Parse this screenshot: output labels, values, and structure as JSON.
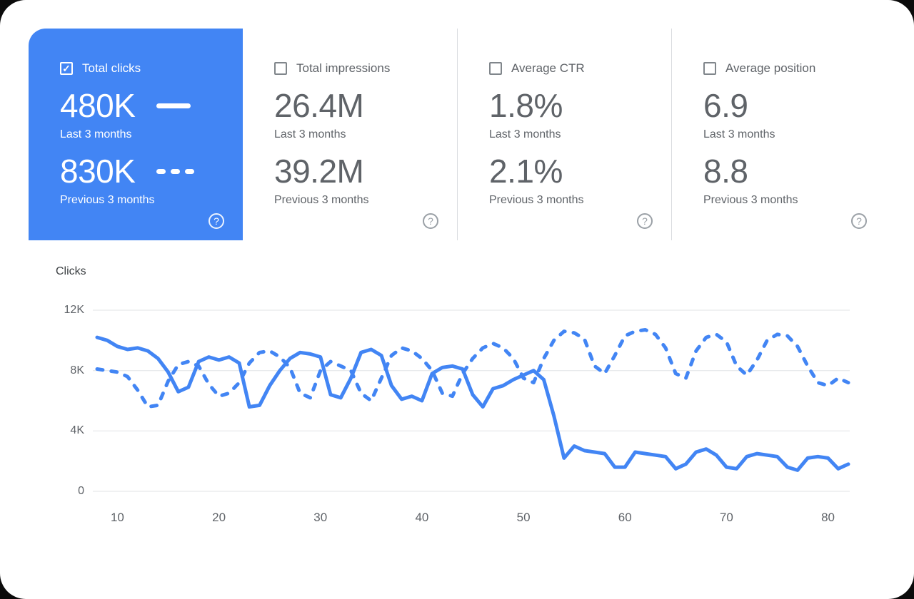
{
  "icons": {
    "check": "✓",
    "help": "?"
  },
  "colors": {
    "accent": "#4285f4",
    "selected_card_bg": "#4285f4",
    "muted_text": "#5f6368",
    "divider": "#dadce0"
  },
  "metrics": {
    "cards": [
      {
        "label": "Total clicks",
        "selected": true,
        "current_value": "480K",
        "current_period": "Last 3 months",
        "previous_value": "830K",
        "previous_period": "Previous 3 months"
      },
      {
        "label": "Total impressions",
        "selected": false,
        "current_value": "26.4M",
        "current_period": "Last 3 months",
        "previous_value": "39.2M",
        "previous_period": "Previous 3 months"
      },
      {
        "label": "Average CTR",
        "selected": false,
        "current_value": "1.8%",
        "current_period": "Last 3 months",
        "previous_value": "2.1%",
        "previous_period": "Previous 3 months"
      },
      {
        "label": "Average position",
        "selected": false,
        "current_value": "6.9",
        "current_period": "Last 3 months",
        "previous_value": "8.8",
        "previous_period": "Previous 3 months"
      }
    ]
  },
  "chart_data": {
    "type": "line",
    "title": "Clicks",
    "xlabel": "",
    "ylabel": "Clicks",
    "grid": true,
    "legend_position": "in-card",
    "line_color": "#4285f4",
    "grid_color": "#e1e3e6",
    "xlim": [
      8,
      82
    ],
    "ylim": [
      0,
      12000
    ],
    "y_ticks": [
      {
        "label": "12K",
        "value": 12000
      },
      {
        "label": "8K",
        "value": 8000
      },
      {
        "label": "4K",
        "value": 4000
      },
      {
        "label": "0",
        "value": 0
      }
    ],
    "x_ticks": [
      10,
      20,
      30,
      40,
      50,
      60,
      70,
      80
    ],
    "x": [
      8,
      9,
      10,
      11,
      12,
      13,
      14,
      15,
      16,
      17,
      18,
      19,
      20,
      21,
      22,
      23,
      24,
      25,
      26,
      27,
      28,
      29,
      30,
      31,
      32,
      33,
      34,
      35,
      36,
      37,
      38,
      39,
      40,
      41,
      42,
      43,
      44,
      45,
      46,
      47,
      48,
      49,
      50,
      51,
      52,
      53,
      54,
      55,
      56,
      57,
      58,
      59,
      60,
      61,
      62,
      63,
      64,
      65,
      66,
      67,
      68,
      69,
      70,
      71,
      72,
      73,
      74,
      75,
      76,
      77,
      78,
      79,
      80,
      81,
      82
    ],
    "series": [
      {
        "name": "Last 3 months",
        "style": "solid",
        "values": [
          10200,
          10000,
          9600,
          9400,
          9500,
          9300,
          8800,
          7900,
          6600,
          6900,
          8600,
          8900,
          8700,
          8900,
          8500,
          5600,
          5700,
          7000,
          8000,
          8800,
          9200,
          9100,
          8900,
          6400,
          6200,
          7500,
          9200,
          9400,
          9000,
          7000,
          6100,
          6300,
          6000,
          7800,
          8200,
          8300,
          8100,
          6400,
          5600,
          6800,
          7000,
          7400,
          7700,
          8000,
          7400,
          5000,
          2200,
          3000,
          2700,
          2600,
          2500,
          1600,
          1600,
          2600,
          2500,
          2400,
          2300,
          1500,
          1800,
          2600,
          2800,
          2400,
          1600,
          1500,
          2300,
          2500,
          2400,
          2300,
          1600,
          1400,
          2200,
          2300,
          2200,
          1500,
          1800
        ]
      },
      {
        "name": "Previous 3 months",
        "style": "dashed",
        "values": [
          8100,
          8000,
          7900,
          7600,
          6700,
          5600,
          5700,
          7300,
          8400,
          8600,
          8300,
          7100,
          6300,
          6500,
          7200,
          8500,
          9200,
          9300,
          8900,
          8200,
          6500,
          6200,
          8000,
          8600,
          8300,
          8000,
          6500,
          6000,
          7500,
          9000,
          9500,
          9300,
          8800,
          8000,
          6500,
          6300,
          7800,
          8800,
          9500,
          9800,
          9500,
          8800,
          7500,
          7200,
          8800,
          10000,
          10600,
          10500,
          10100,
          8300,
          7800,
          9000,
          10300,
          10600,
          10700,
          10400,
          9500,
          7800,
          7500,
          9300,
          10200,
          10400,
          9900,
          8300,
          7700,
          8700,
          10000,
          10400,
          10300,
          9600,
          8300,
          7200,
          7000,
          7500,
          7200
        ]
      }
    ]
  }
}
